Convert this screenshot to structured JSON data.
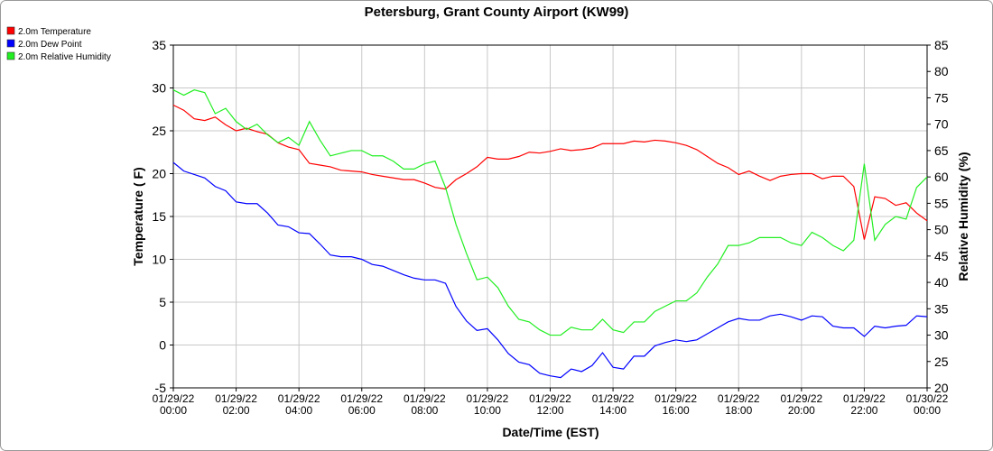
{
  "chart_data": {
    "type": "line",
    "title": "Petersburg, Grant County Airport (KW99)",
    "x_label": "Date/Time (EST)",
    "y_label": "Temperature ( F)",
    "y2_label": "Relative Humidity (%)",
    "grid": true,
    "legend": "top-left",
    "x": [
      "01/29/22 00:00",
      "01/29/22 00:20",
      "01/29/22 00:40",
      "01/29/22 01:00",
      "01/29/22 01:20",
      "01/29/22 01:40",
      "01/29/22 02:00",
      "01/29/22 02:20",
      "01/29/22 02:40",
      "01/29/22 03:00",
      "01/29/22 03:20",
      "01/29/22 03:40",
      "01/29/22 04:00",
      "01/29/22 04:20",
      "01/29/22 04:40",
      "01/29/22 05:00",
      "01/29/22 05:20",
      "01/29/22 05:40",
      "01/29/22 06:00",
      "01/29/22 06:20",
      "01/29/22 06:40",
      "01/29/22 07:00",
      "01/29/22 07:20",
      "01/29/22 07:40",
      "01/29/22 08:00",
      "01/29/22 08:20",
      "01/29/22 08:40",
      "01/29/22 09:00",
      "01/29/22 09:20",
      "01/29/22 09:40",
      "01/29/22 10:00",
      "01/29/22 10:20",
      "01/29/22 10:40",
      "01/29/22 11:00",
      "01/29/22 11:20",
      "01/29/22 11:40",
      "01/29/22 12:00",
      "01/29/22 12:20",
      "01/29/22 12:40",
      "01/29/22 13:00",
      "01/29/22 13:20",
      "01/29/22 13:40",
      "01/29/22 14:00",
      "01/29/22 14:20",
      "01/29/22 14:40",
      "01/29/22 15:00",
      "01/29/22 15:20",
      "01/29/22 15:40",
      "01/29/22 16:00",
      "01/29/22 16:20",
      "01/29/22 16:40",
      "01/29/22 17:00",
      "01/29/22 17:20",
      "01/29/22 17:40",
      "01/29/22 18:00",
      "01/29/22 18:20",
      "01/29/22 18:40",
      "01/29/22 19:00",
      "01/29/22 19:20",
      "01/29/22 19:40",
      "01/29/22 20:00",
      "01/29/22 20:20",
      "01/29/22 20:40",
      "01/29/22 21:00",
      "01/29/22 21:20",
      "01/29/22 21:40",
      "01/29/22 22:00",
      "01/29/22 22:20",
      "01/29/22 22:40",
      "01/29/22 23:00",
      "01/29/22 23:20",
      "01/29/22 23:40",
      "01/30/22 00:00"
    ],
    "series": [
      {
        "name": "2.0m Temperature",
        "color": "#ff0000",
        "values": [
          28.0,
          27.4,
          26.4,
          26.2,
          26.6,
          25.7,
          25.0,
          25.3,
          24.9,
          24.6,
          23.6,
          23.1,
          22.8,
          21.2,
          21.0,
          20.8,
          20.4,
          20.3,
          20.2,
          19.9,
          19.7,
          19.5,
          19.3,
          19.3,
          18.9,
          18.4,
          18.2,
          19.3,
          20.0,
          20.8,
          21.9,
          21.7,
          21.7,
          22.0,
          22.5,
          22.4,
          22.6,
          22.9,
          22.7,
          22.8,
          23.0,
          23.5,
          23.5,
          23.5,
          23.8,
          23.7,
          23.9,
          23.8,
          23.6,
          23.3,
          22.8,
          22.0,
          21.2,
          20.7,
          19.9,
          20.3,
          19.7,
          19.2,
          19.7,
          19.9,
          20.0,
          20.0,
          19.4,
          19.7,
          19.7,
          18.5,
          12.3,
          17.3,
          17.1,
          16.3,
          16.6,
          15.4,
          14.5
        ]
      },
      {
        "name": "2.0m Dew Point",
        "color": "#0000ff",
        "values": [
          21.3,
          20.3,
          19.9,
          19.5,
          18.5,
          18.0,
          16.7,
          16.5,
          16.5,
          15.4,
          14.0,
          13.8,
          13.1,
          13.0,
          11.8,
          10.5,
          10.3,
          10.3,
          10.0,
          9.4,
          9.2,
          8.7,
          8.2,
          7.8,
          7.6,
          7.6,
          7.2,
          4.5,
          2.8,
          1.7,
          1.9,
          0.6,
          -1.0,
          -2.0,
          -2.3,
          -3.3,
          -3.6,
          -3.8,
          -2.8,
          -3.1,
          -2.4,
          -0.9,
          -2.6,
          -2.8,
          -1.3,
          -1.3,
          -0.1,
          0.3,
          0.6,
          0.4,
          0.6,
          1.3,
          2.0,
          2.7,
          3.1,
          2.9,
          2.9,
          3.4,
          3.6,
          3.3,
          2.9,
          3.4,
          3.3,
          2.2,
          2.0,
          2.0,
          1.0,
          2.2,
          2.0,
          2.2,
          2.3,
          3.4,
          3.3
        ]
      },
      {
        "name": "2.0m Relative Humidity",
        "color": "#22ee22",
        "axis": "y2",
        "values": [
          76.5,
          75.5,
          76.5,
          76,
          72,
          73,
          70.5,
          69,
          70,
          68,
          66.5,
          67.5,
          66,
          70.5,
          67,
          64,
          64.5,
          65,
          65,
          64,
          64,
          63,
          61.5,
          61.5,
          62.5,
          63,
          58,
          51,
          45.5,
          40.5,
          41,
          39,
          35.5,
          33,
          32.5,
          31,
          30,
          30,
          31.5,
          31,
          31,
          33,
          31,
          30.5,
          32.5,
          32.5,
          34.5,
          35.5,
          36.5,
          36.5,
          38,
          41,
          43.5,
          47,
          47,
          47.5,
          48.5,
          48.5,
          48.5,
          47.5,
          47,
          49.5,
          48.5,
          47,
          46,
          48,
          62.5,
          48,
          51,
          52.5,
          52,
          58,
          60
        ]
      }
    ],
    "xlim": [
      "01/29/22 00:00",
      "01/30/22 00:00"
    ],
    "xticks": [
      "01/29/22 00:00",
      "01/29/22 02:00",
      "01/29/22 04:00",
      "01/29/22 06:00",
      "01/29/22 08:00",
      "01/29/22 10:00",
      "01/29/22 12:00",
      "01/29/22 14:00",
      "01/29/22 16:00",
      "01/29/22 18:00",
      "01/29/22 20:00",
      "01/29/22 22:00",
      "01/30/22 00:00"
    ],
    "ylim": [
      -5,
      35
    ],
    "yticks": [
      -5,
      0,
      5,
      10,
      15,
      20,
      25,
      30,
      35
    ],
    "y2lim": [
      20,
      85
    ],
    "y2ticks": [
      20,
      25,
      30,
      35,
      40,
      45,
      50,
      55,
      60,
      65,
      70,
      75,
      80,
      85
    ]
  }
}
